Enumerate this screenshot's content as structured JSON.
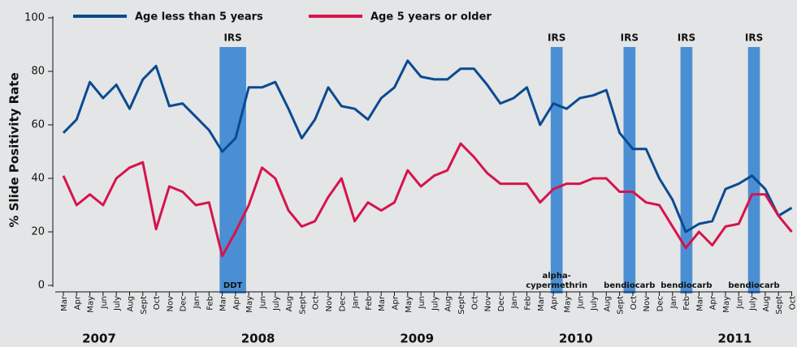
{
  "chart_data": {
    "type": "line",
    "y_label": "% Slide Positivity Rate",
    "categories": [
      "Mar",
      "Apr",
      "May",
      "Jun",
      "July",
      "Aug",
      "Sept",
      "Oct",
      "Nov",
      "Dec",
      "Jan",
      "Feb",
      "Mar",
      "Apr",
      "May",
      "Jun",
      "July",
      "Aug",
      "Sept",
      "Oct",
      "Nov",
      "Dec",
      "Jan",
      "Feb",
      "Mar",
      "Apr",
      "May",
      "Jun",
      "July",
      "Aug",
      "Sept",
      "Oct",
      "Nov",
      "Dec",
      "Jan",
      "Feb",
      "Mar",
      "Apr",
      "May",
      "Jun",
      "July",
      "Aug",
      "Sept",
      "Oct",
      "Nov",
      "Dec",
      "Jan",
      "Feb",
      "Mar",
      "Apr",
      "May",
      "Jun",
      "July",
      "Aug",
      "Sept",
      "Oct"
    ],
    "years": [
      "2007",
      "2008",
      "2009",
      "2010",
      "2011"
    ],
    "series": [
      {
        "name": "Age less than 5 years",
        "color": "#0b4a92",
        "values": [
          57,
          62,
          76,
          70,
          75,
          66,
          77,
          82,
          67,
          68,
          63,
          58,
          50,
          55,
          74,
          74,
          76,
          66,
          55,
          62,
          74,
          67,
          66,
          62,
          70,
          74,
          84,
          78,
          77,
          77,
          81,
          81,
          75,
          68,
          70,
          74,
          60,
          68,
          66,
          70,
          71,
          73,
          57,
          51,
          51,
          40,
          32,
          20,
          23,
          24,
          36,
          38,
          41,
          36,
          26,
          29
        ]
      },
      {
        "name": "Age 5 years or older",
        "color": "#d6144b",
        "values": [
          41,
          30,
          34,
          30,
          40,
          44,
          46,
          21,
          37,
          35,
          30,
          31,
          11,
          20,
          30,
          44,
          40,
          28,
          22,
          24,
          33,
          40,
          24,
          31,
          28,
          31,
          43,
          37,
          41,
          43,
          53,
          48,
          42,
          38,
          38,
          38,
          31,
          36,
          38,
          38,
          40,
          40,
          35,
          35,
          31,
          30,
          22,
          14,
          20,
          15,
          22,
          23,
          34,
          34,
          26,
          20
        ]
      }
    ],
    "irs": [
      {
        "label": "IRS",
        "insecticide": [
          "DDT"
        ]
      },
      {
        "label": "IRS",
        "insecticide": [
          "alpha-",
          "cypermethrin"
        ]
      },
      {
        "label": "IRS",
        "insecticide": [
          "bendiocarb"
        ]
      },
      {
        "label": "IRS",
        "insecticide": [
          "bendiocarb"
        ]
      },
      {
        "label": "IRS",
        "insecticide": [
          "bendiocarb"
        ]
      }
    ],
    "irs_color": "#4a8fd4",
    "ylim": [
      0,
      100
    ],
    "yticks": [
      0,
      20,
      40,
      60,
      80,
      100
    ]
  }
}
